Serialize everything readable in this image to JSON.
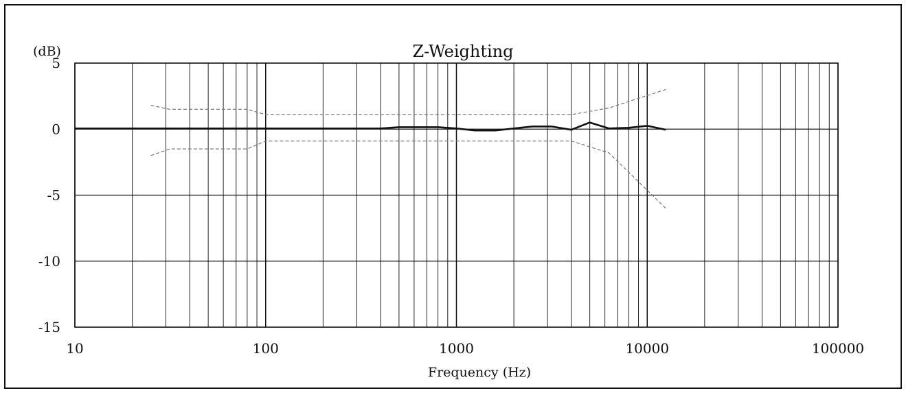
{
  "chart_data": {
    "type": "line",
    "title": "Z-Weighting",
    "xlabel": "Frequency (Hz)",
    "ylabel": "(dB)",
    "x_scale": "log",
    "xlim": [
      10,
      100000
    ],
    "ylim": [
      -15,
      5
    ],
    "x_ticks": [
      "10",
      "100",
      "1000",
      "10000",
      "100000"
    ],
    "y_ticks": [
      "5",
      "0",
      "-5",
      "-10",
      "-15"
    ],
    "grid": true,
    "series": [
      {
        "role": "response",
        "color": "#111111",
        "x": [
          10,
          20,
          31.5,
          63,
          125,
          250,
          400,
          500,
          630,
          800,
          1000,
          1250,
          1600,
          2000,
          2500,
          3150,
          4000,
          5000,
          6300,
          8000,
          10000,
          12500
        ],
        "y": [
          0.05,
          0.05,
          0.05,
          0.05,
          0.05,
          0.05,
          0.05,
          0.15,
          0.15,
          0.15,
          0.05,
          -0.1,
          -0.1,
          0.05,
          0.2,
          0.2,
          -0.05,
          0.5,
          0.05,
          0.1,
          0.25,
          -0.05
        ]
      },
      {
        "role": "upper-tolerance",
        "color": "#777777",
        "x": [
          25,
          31.5,
          80,
          100,
          400,
          1000,
          4000,
          6300,
          12500
        ],
        "y": [
          1.8,
          1.5,
          1.5,
          1.1,
          1.1,
          1.1,
          1.1,
          1.6,
          3.0
        ]
      },
      {
        "role": "lower-tolerance",
        "color": "#777777",
        "x": [
          25,
          31.5,
          80,
          100,
          400,
          1000,
          4000,
          6300,
          12500
        ],
        "y": [
          -2.0,
          -1.5,
          -1.5,
          -0.9,
          -0.9,
          -0.9,
          -0.9,
          -1.8,
          -6.0
        ]
      }
    ]
  }
}
